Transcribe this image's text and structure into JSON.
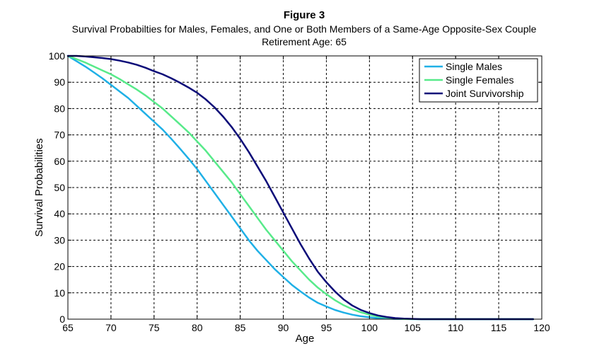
{
  "chart_data": {
    "type": "line",
    "title": "Figure 3",
    "subtitle": "Survival Probabilties for Males, Females, and One or Both Members of a Same-Age Opposite-Sex Couple",
    "subtitle2": "Retirement Age: 65",
    "xlabel": "Age",
    "ylabel": "Survival Probabilities",
    "xlim": [
      65,
      120
    ],
    "ylim": [
      0,
      100
    ],
    "xticks": [
      65,
      70,
      75,
      80,
      85,
      90,
      95,
      100,
      105,
      110,
      115,
      120
    ],
    "yticks": [
      0,
      10,
      20,
      30,
      40,
      50,
      60,
      70,
      80,
      90,
      100
    ],
    "grid": true,
    "legend_position": "top-right",
    "series": [
      {
        "name": "Single Males",
        "color": "#1fb0e6",
        "x": [
          65,
          66,
          67,
          68,
          69,
          70,
          71,
          72,
          73,
          74,
          75,
          76,
          77,
          78,
          79,
          80,
          81,
          82,
          83,
          84,
          85,
          86,
          87,
          88,
          89,
          90,
          91,
          92,
          93,
          94,
          95,
          96,
          97,
          98,
          99,
          100,
          101,
          102,
          103,
          104,
          105,
          106,
          108,
          110,
          112,
          114,
          116,
          119
        ],
        "y": [
          100,
          98,
          96,
          93.8,
          91.5,
          89,
          86.5,
          84,
          81,
          78,
          75,
          72,
          68.5,
          64.8,
          61,
          57,
          52.5,
          48,
          43.5,
          39,
          34.5,
          30,
          26,
          22.5,
          19,
          16,
          13,
          10.5,
          8.2,
          6.2,
          4.8,
          3.5,
          2.5,
          1.7,
          1.1,
          0.7,
          0.4,
          0.2,
          0.1,
          0.05,
          0,
          0,
          0,
          0,
          0,
          0,
          0,
          0
        ]
      },
      {
        "name": "Single Females",
        "color": "#58ea8a",
        "x": [
          65,
          66,
          67,
          68,
          69,
          70,
          71,
          72,
          73,
          74,
          75,
          76,
          77,
          78,
          79,
          80,
          81,
          82,
          83,
          84,
          85,
          86,
          87,
          88,
          89,
          90,
          91,
          92,
          93,
          94,
          95,
          96,
          97,
          98,
          99,
          100,
          101,
          102,
          103,
          104,
          105,
          106,
          108,
          110,
          112,
          114,
          116,
          119
        ],
        "y": [
          100,
          98.8,
          97.5,
          96,
          94.5,
          93,
          91.2,
          89.2,
          87.2,
          85,
          82.5,
          80,
          77,
          74,
          71,
          67.5,
          64,
          60,
          56,
          52,
          47.5,
          43,
          38.5,
          34,
          30,
          26,
          22,
          18.5,
          15,
          12,
          9.5,
          7.2,
          5.3,
          3.8,
          2.6,
          1.7,
          1.0,
          0.6,
          0.3,
          0.1,
          0.05,
          0,
          0,
          0,
          0,
          0,
          0,
          0
        ]
      },
      {
        "name": "Joint Survivorship",
        "color": "#0a0a78",
        "x": [
          65,
          66,
          67,
          68,
          69,
          70,
          71,
          72,
          73,
          74,
          75,
          76,
          77,
          78,
          79,
          80,
          81,
          82,
          83,
          84,
          85,
          86,
          87,
          88,
          89,
          90,
          91,
          92,
          93,
          94,
          95,
          96,
          97,
          98,
          99,
          100,
          101,
          102,
          103,
          104,
          105,
          106,
          108,
          110,
          112,
          114,
          116,
          119
        ],
        "y": [
          100,
          100,
          99.8,
          99.5,
          99.2,
          98.8,
          98.2,
          97.5,
          96.6,
          95.5,
          94.2,
          93,
          91.5,
          89.8,
          88,
          86,
          83.5,
          80.5,
          77,
          73,
          68.5,
          63.5,
          58,
          52.5,
          46.5,
          40.5,
          34.5,
          28.5,
          23,
          18,
          14,
          10.5,
          7.5,
          5.2,
          3.5,
          2.3,
          1.4,
          0.8,
          0.4,
          0.2,
          0.1,
          0,
          0,
          0,
          0,
          0,
          0,
          0
        ]
      }
    ]
  }
}
